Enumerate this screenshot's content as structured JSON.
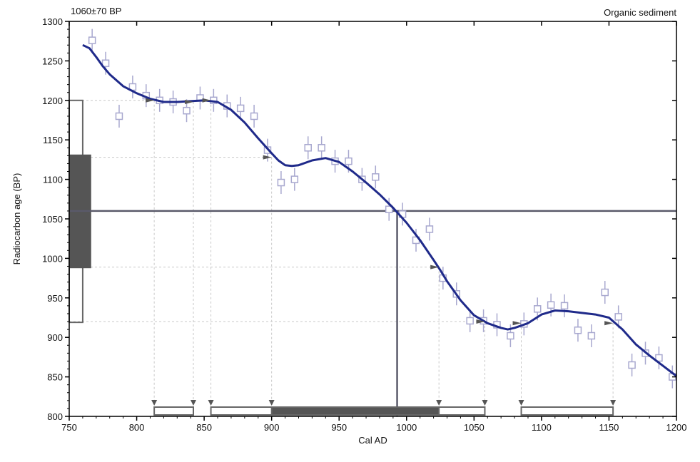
{
  "header": {
    "left_label": "1060±70 BP",
    "right_label": "Organic sediment"
  },
  "chart_data": {
    "type": "line",
    "xlabel": "Cal AD",
    "ylabel": "Radiocarbon age (BP)",
    "xlim": [
      750,
      1200
    ],
    "ylim": [
      800,
      1300
    ],
    "x_ticks": [
      750,
      800,
      850,
      900,
      950,
      1000,
      1050,
      1100,
      1150,
      1200
    ],
    "y_ticks": [
      800,
      850,
      900,
      950,
      1000,
      1050,
      1100,
      1150,
      1200,
      1250,
      1300
    ],
    "grid": "dashed at calibrated range boundaries",
    "colors": {
      "curve": "#1f2a8a",
      "datapoints": "#a8a8cf",
      "measurement_line": "#5a5a6a",
      "range_fill": "#555555",
      "range_outline": "#666666",
      "grid": "#c8c8c8"
    },
    "series": [
      {
        "id": "calibration-curve",
        "x": [
          760,
          765,
          770,
          775,
          780,
          790,
          800,
          810,
          820,
          830,
          840,
          850,
          860,
          870,
          880,
          890,
          900,
          905,
          910,
          915,
          920,
          930,
          940,
          950,
          960,
          970,
          980,
          990,
          1000,
          1010,
          1020,
          1025,
          1030,
          1040,
          1050,
          1060,
          1070,
          1075,
          1080,
          1090,
          1100,
          1110,
          1120,
          1130,
          1140,
          1150,
          1160,
          1170,
          1180,
          1190,
          1200
        ],
        "y": [
          1270,
          1266,
          1255,
          1243,
          1233,
          1218,
          1209,
          1202,
          1198,
          1198,
          1199,
          1200,
          1198,
          1188,
          1172,
          1152,
          1133,
          1124,
          1118,
          1117,
          1118,
          1124,
          1127,
          1122,
          1110,
          1096,
          1081,
          1064,
          1045,
          1023,
          998,
          985,
          971,
          947,
          928,
          918,
          912,
          910,
          912,
          918,
          929,
          934,
          933,
          931,
          929,
          925,
          910,
          891,
          877,
          864,
          851
        ]
      },
      {
        "id": "data-points",
        "x": [
          767,
          777,
          787,
          797,
          807,
          817,
          827,
          837,
          847,
          857,
          867,
          877,
          887,
          897,
          907,
          917,
          927,
          937,
          947,
          957,
          967,
          977,
          987,
          997,
          1007,
          1017,
          1027,
          1037,
          1047,
          1057,
          1067,
          1077,
          1087,
          1097,
          1107,
          1117,
          1127,
          1137,
          1147,
          1157,
          1167,
          1177,
          1187,
          1197
        ],
        "y": [
          1276,
          1247,
          1180,
          1217,
          1206,
          1200,
          1198,
          1187,
          1203,
          1200,
          1193,
          1190,
          1180,
          1137,
          1096,
          1100,
          1140,
          1140,
          1123,
          1123,
          1100,
          1103,
          1062,
          1056,
          1023,
          1037,
          975,
          955,
          921,
          921,
          916,
          902,
          917,
          936,
          941,
          940,
          909,
          902,
          957,
          926,
          865,
          880,
          874,
          850
        ]
      }
    ],
    "measurement": {
      "age_bp": 1060,
      "error": 70,
      "intercept_ad": 993
    },
    "calibrated_ranges": [
      {
        "from": 813,
        "to": 842,
        "level": "2 sigma"
      },
      {
        "from": 855,
        "to": 1058,
        "level": "2 sigma"
      },
      {
        "from": 900,
        "to": 1024,
        "level": "1 sigma"
      },
      {
        "from": 1085,
        "to": 1153,
        "level": "2 sigma"
      }
    ],
    "age_distribution": {
      "outer": [
        919,
        1200
      ],
      "inner": [
        988,
        1131
      ]
    },
    "range_markers_x": [
      813,
      842,
      855,
      900,
      1024,
      1058,
      1085,
      1153
    ],
    "curve_markers": [
      {
        "x": 813,
        "y": 1200
      },
      {
        "x": 842,
        "y": 1198
      },
      {
        "x": 855,
        "y": 1200
      },
      {
        "x": 900,
        "y": 1128
      },
      {
        "x": 1024,
        "y": 989
      },
      {
        "x": 1058,
        "y": 920
      },
      {
        "x": 1085,
        "y": 918
      },
      {
        "x": 1153,
        "y": 918
      }
    ]
  }
}
